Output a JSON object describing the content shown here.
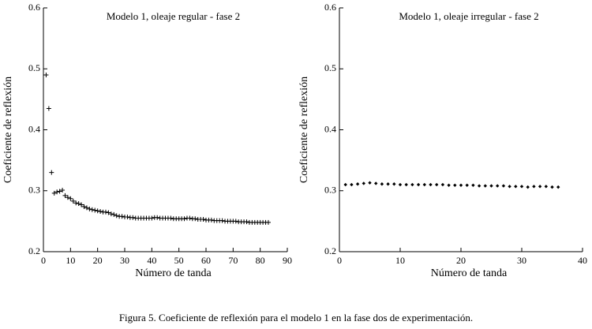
{
  "chart_data": [
    {
      "type": "scatter",
      "title": "Modelo 1, oleaje regular - fase 2",
      "x_label": "Número de tanda",
      "y_label": "Coeficiente de reflexión",
      "marker": "plus",
      "color": "#000000",
      "x": [
        1,
        2,
        3,
        4,
        5,
        6,
        7,
        8,
        9,
        10,
        11,
        12,
        13,
        14,
        15,
        16,
        17,
        18,
        19,
        20,
        21,
        22,
        23,
        24,
        25,
        26,
        27,
        28,
        29,
        30,
        31,
        32,
        33,
        34,
        35,
        36,
        37,
        38,
        39,
        40,
        41,
        42,
        43,
        44,
        45,
        46,
        47,
        48,
        49,
        50,
        51,
        52,
        53,
        54,
        55,
        56,
        57,
        58,
        59,
        60,
        61,
        62,
        63,
        64,
        65,
        66,
        67,
        68,
        69,
        70,
        71,
        72,
        73,
        74,
        75,
        76,
        77,
        78,
        79,
        80,
        81,
        82,
        83
      ],
      "values": [
        0.49,
        0.435,
        0.33,
        0.296,
        0.298,
        0.299,
        0.301,
        0.292,
        0.289,
        0.287,
        0.283,
        0.28,
        0.279,
        0.277,
        0.274,
        0.272,
        0.27,
        0.269,
        0.268,
        0.267,
        0.266,
        0.265,
        0.265,
        0.264,
        0.262,
        0.261,
        0.259,
        0.258,
        0.258,
        0.257,
        0.257,
        0.256,
        0.256,
        0.255,
        0.255,
        0.255,
        0.255,
        0.255,
        0.255,
        0.255,
        0.256,
        0.256,
        0.255,
        0.255,
        0.255,
        0.255,
        0.255,
        0.254,
        0.254,
        0.254,
        0.254,
        0.254,
        0.255,
        0.255,
        0.254,
        0.254,
        0.253,
        0.253,
        0.253,
        0.252,
        0.252,
        0.252,
        0.251,
        0.251,
        0.251,
        0.251,
        0.25,
        0.25,
        0.25,
        0.25,
        0.25,
        0.249,
        0.249,
        0.249,
        0.249,
        0.248,
        0.248,
        0.248,
        0.248,
        0.248,
        0.248,
        0.248,
        0.248
      ],
      "xlim": [
        0,
        90
      ],
      "xticks": [
        0,
        10,
        20,
        30,
        40,
        50,
        60,
        70,
        80,
        90
      ],
      "ylim": [
        0.2,
        0.6
      ],
      "yticks": [
        0.2,
        0.3,
        0.4,
        0.5,
        0.6
      ]
    },
    {
      "type": "scatter",
      "title": "Modelo 1, oleaje irregular - fase 2",
      "x_label": "Número de tanda",
      "y_label": "Coeficiente de reflexión",
      "marker": "diamond",
      "color": "#000000",
      "x": [
        1,
        2,
        3,
        4,
        5,
        6,
        7,
        8,
        9,
        10,
        11,
        12,
        13,
        14,
        15,
        16,
        17,
        18,
        19,
        20,
        21,
        22,
        23,
        24,
        25,
        26,
        27,
        28,
        29,
        30,
        31,
        32,
        33,
        34,
        35,
        36
      ],
      "values": [
        0.31,
        0.31,
        0.311,
        0.312,
        0.313,
        0.312,
        0.311,
        0.311,
        0.311,
        0.31,
        0.31,
        0.31,
        0.31,
        0.31,
        0.31,
        0.31,
        0.31,
        0.309,
        0.309,
        0.309,
        0.309,
        0.309,
        0.308,
        0.308,
        0.308,
        0.308,
        0.308,
        0.307,
        0.307,
        0.307,
        0.306,
        0.307,
        0.307,
        0.307,
        0.306,
        0.306
      ],
      "xlim": [
        0,
        40
      ],
      "xticks": [
        0,
        10,
        20,
        30,
        40
      ],
      "ylim": [
        0.2,
        0.6
      ],
      "yticks": [
        0.2,
        0.3,
        0.4,
        0.5,
        0.6
      ]
    }
  ],
  "caption": "Figura 5. Coeficiente de reflexión para el modelo 1 en la fase dos de experimentación."
}
